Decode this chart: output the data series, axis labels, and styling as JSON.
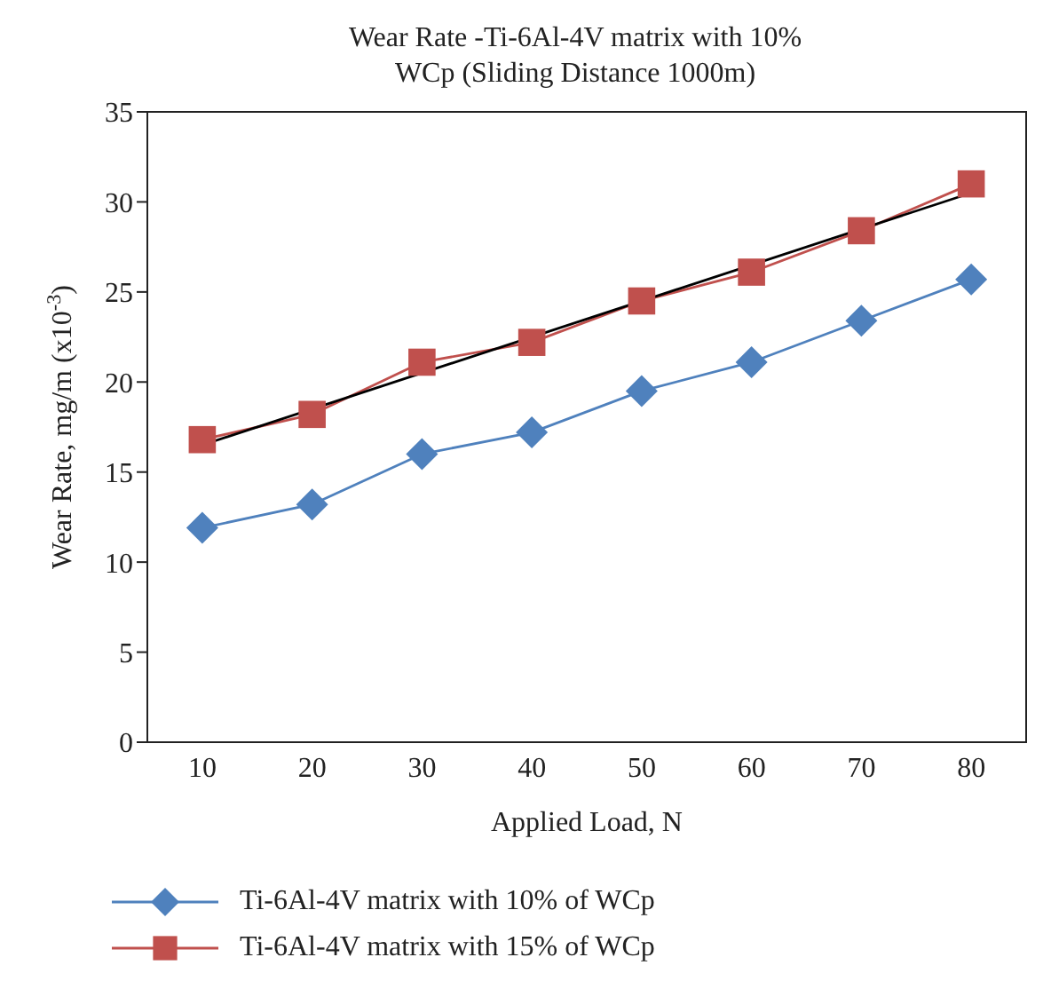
{
  "chart_data": {
    "type": "line",
    "title": "Wear Rate -Ti-6Al-4V matrix with 10% WCp (Sliding Distance 1000m)",
    "xlabel": "Applied Load, N",
    "ylabel": "Wear Rate, mg/m (x10$^{-3}$)",
    "x": [
      10,
      20,
      30,
      40,
      50,
      60,
      70,
      80
    ],
    "xlim": [
      5,
      85
    ],
    "xticks": [
      10,
      20,
      30,
      40,
      50,
      60,
      70,
      80
    ],
    "ylim": [
      0,
      35
    ],
    "yticks": [
      0,
      5,
      10,
      15,
      20,
      25,
      30,
      35
    ],
    "legend": "bottom",
    "series": [
      {
        "name": "Ti-6Al-4V matrix with 10% of WCp",
        "color": "#4f81bd",
        "marker": "diamond",
        "values": [
          11.9,
          13.2,
          16.0,
          17.2,
          19.5,
          21.1,
          23.4,
          25.7
        ]
      },
      {
        "name": "Ti-6Al-4V matrix with 15% of WCp",
        "color": "#c0504d",
        "marker": "square",
        "values": [
          16.8,
          18.2,
          21.1,
          22.2,
          24.5,
          26.1,
          28.4,
          31.0
        ]
      },
      {
        "type": "line",
        "color": "#000000",
        "marker": "none",
        "x": [
          10,
          80
        ],
        "values": [
          16.5,
          30.5
        ]
      }
    ]
  }
}
